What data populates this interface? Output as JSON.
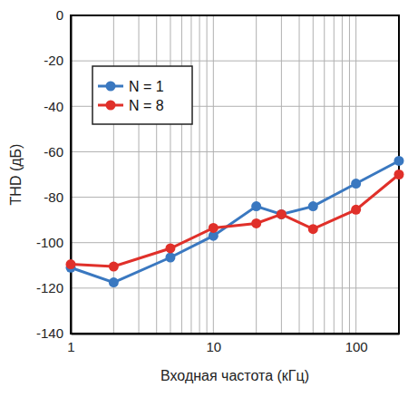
{
  "chart_data": {
    "type": "line",
    "x_label": "Входная частота (кГц)",
    "y_label": "THD (дБ)",
    "x": [
      1,
      2,
      5,
      10,
      20,
      30,
      50,
      100,
      200
    ],
    "series": [
      {
        "name": "N = 1",
        "color": "#3a78c0",
        "marker": "circle",
        "values": [
          -111,
          -117.5,
          -106.5,
          -97,
          -84,
          -87.5,
          -84,
          -74,
          -64
        ]
      },
      {
        "name": "N = 8",
        "color": "#e0302a",
        "marker": "circle",
        "values": [
          -109.5,
          -110.5,
          -102.5,
          -93.5,
          -91.5,
          -87.5,
          -94,
          -85.5,
          -70
        ]
      }
    ],
    "xlim": [
      1,
      200
    ],
    "xticks": [
      1,
      10,
      100
    ],
    "ylim": [
      -140,
      0
    ],
    "yticks": [
      -140,
      -120,
      -100,
      -80,
      -60,
      -40,
      -20,
      0
    ],
    "log": "x",
    "grid": true,
    "legend": "upper left"
  }
}
